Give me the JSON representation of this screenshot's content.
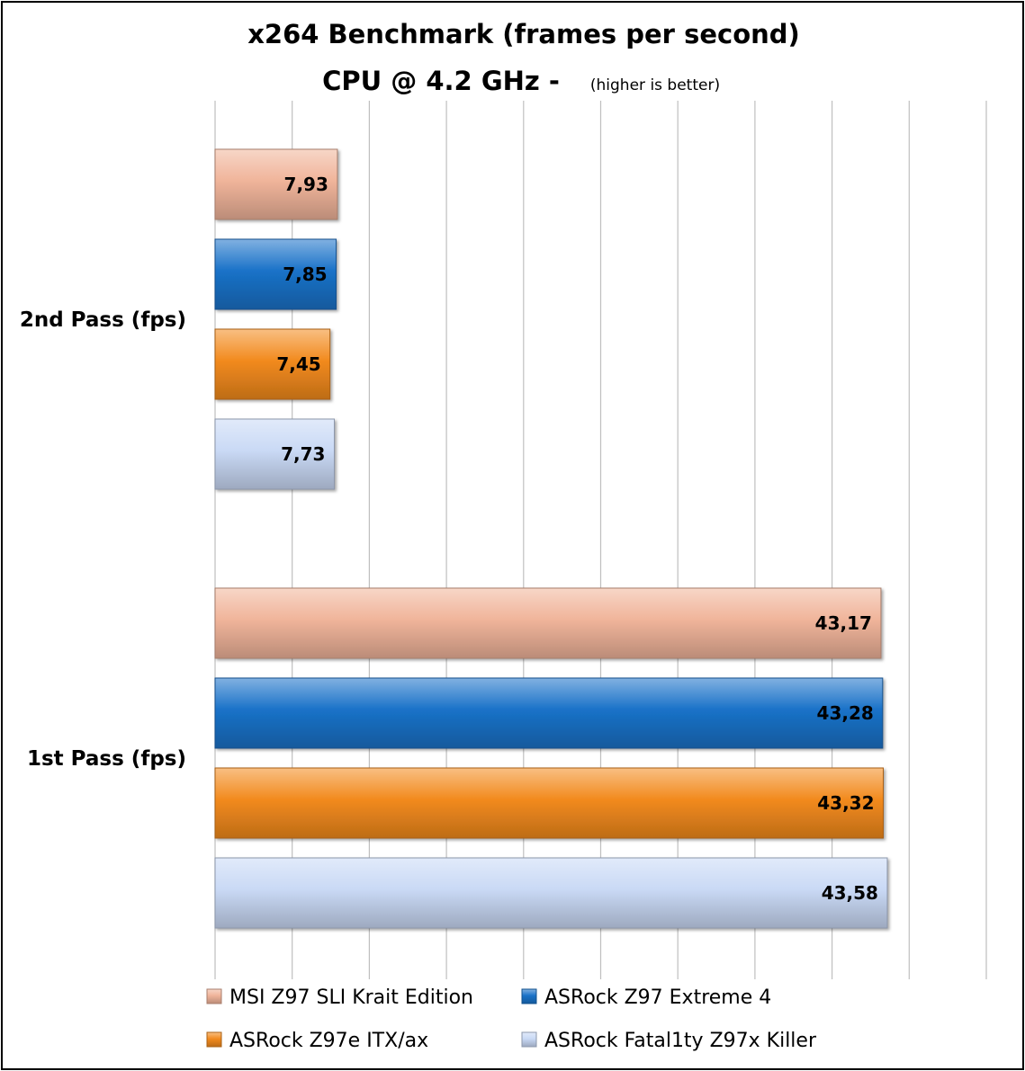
{
  "chart_data": {
    "type": "bar",
    "orientation": "horizontal",
    "title": "x264 Benchmark (frames per second)",
    "subtitle": "CPU @ 4.2 GHz -",
    "subtitle_note": "(higher is better)",
    "categories": [
      "2nd Pass (fps)",
      "1st Pass (fps)"
    ],
    "series": [
      {
        "name": "MSI Z97 SLI Krait Edition",
        "values": [
          7.93,
          43.17
        ],
        "labels": [
          "7,93",
          "43,17"
        ],
        "color": "#f0b49a"
      },
      {
        "name": "ASRock Z97 Extreme 4",
        "values": [
          7.85,
          43.28
        ],
        "labels": [
          "7,85",
          "43,28"
        ],
        "color": "#1a72c8"
      },
      {
        "name": "ASRock Z97e ITX/ax",
        "values": [
          7.45,
          43.32
        ],
        "labels": [
          "7,45",
          "43,32"
        ],
        "color": "#f28a1e"
      },
      {
        "name": "ASRock Fatal1ty Z97x Killer",
        "values": [
          7.73,
          43.58
        ],
        "labels": [
          "7,73",
          "43,58"
        ],
        "color": "#c9d9f5"
      }
    ],
    "xlim": [
      0,
      50
    ],
    "grid": true,
    "legend": "bottom"
  }
}
